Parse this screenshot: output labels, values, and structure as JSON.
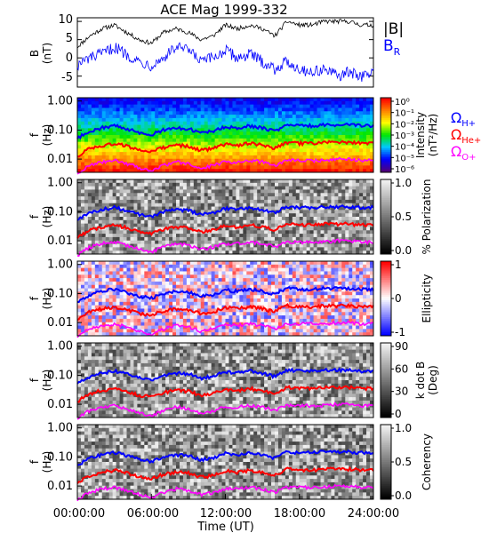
{
  "title": "ACE Mag 1999-332",
  "x_axis": {
    "label": "Time (UT)",
    "tick_labels": [
      "00:00:00",
      "06:00:00",
      "12:00:00",
      "18:00:00",
      "24:00:00"
    ],
    "range_hours": [
      0,
      24
    ]
  },
  "freq_ticks": [
    "1.00",
    "0.10",
    "0.01"
  ],
  "colors": {
    "black": "#000000",
    "blue": "#0000ff",
    "red": "#ff0000",
    "magenta": "#ff00ff"
  },
  "panel1": {
    "ylabel_main": "B",
    "ylabel_unit": "(nT)",
    "ticks": [
      "10",
      "5",
      "0",
      "-5"
    ],
    "legend_total": "|B|",
    "legend_radial": "B",
    "legend_radial_sub": "R"
  },
  "panels": [
    {
      "key": "intensity",
      "ylabel": "f",
      "yunit": "(Hz)",
      "cbar_title": "Intensity",
      "cbar_unit": "(nT²/Hz)",
      "cbar_type": "rainbow",
      "cbar_ticks": [
        "10⁰",
        "10⁻¹",
        "10⁻²",
        "10⁻³",
        "10⁻⁴",
        "10⁻⁵",
        "10⁻⁶"
      ]
    },
    {
      "key": "polarization",
      "ylabel": "f",
      "yunit": "(Hz)",
      "cbar_title": "% Polarization",
      "cbar_unit": "",
      "cbar_type": "gray",
      "cbar_ticks": [
        "1.0",
        "0.5",
        "0.0"
      ]
    },
    {
      "key": "ellipticity",
      "ylabel": "f",
      "yunit": "(Hz)",
      "cbar_title": "Ellipticity",
      "cbar_unit": "",
      "cbar_type": "bwr",
      "cbar_ticks": [
        "1",
        "0",
        "-1"
      ]
    },
    {
      "key": "kdotb",
      "ylabel": "f",
      "yunit": "(Hz)",
      "cbar_title": "k dot B",
      "cbar_unit": "(Deg)",
      "cbar_type": "gray",
      "cbar_ticks": [
        "90",
        "60",
        "30",
        "0"
      ]
    },
    {
      "key": "coherency",
      "ylabel": "f",
      "yunit": "(Hz)",
      "cbar_title": "Coherency",
      "cbar_unit": "",
      "cbar_type": "gray",
      "cbar_ticks": [
        "1.0",
        "0.5",
        "0.0"
      ]
    }
  ],
  "gyro_legend": [
    {
      "symbol": "Ω",
      "sub": "H+",
      "color": "#0000ff"
    },
    {
      "symbol": "Ω",
      "sub": "He+",
      "color": "#ff0000"
    },
    {
      "symbol": "Ω",
      "sub": "O+",
      "color": "#ff00ff"
    }
  ],
  "chart_data": {
    "type": "line",
    "title": "ACE Mag 1999-332",
    "xlabel": "Time (UT)",
    "ylabel": "B (nT)",
    "ylim": [
      -8,
      11
    ],
    "x": [
      0,
      1,
      2,
      3,
      4,
      5,
      6,
      7,
      8,
      9,
      10,
      11,
      12,
      13,
      14,
      15,
      16,
      17,
      18,
      19,
      20,
      21,
      22,
      23,
      24
    ],
    "series": [
      {
        "name": "|B|",
        "values": [
          3,
          6,
          8,
          9,
          7,
          5,
          4,
          7,
          8,
          7,
          5,
          6,
          9,
          8,
          9,
          8,
          6,
          10,
          9,
          9,
          10,
          10,
          10,
          9,
          9
        ]
      },
      {
        "name": "B R",
        "values": [
          -2,
          0,
          1,
          3,
          1,
          -1,
          -2,
          0,
          3,
          2,
          -1,
          0,
          2,
          0,
          1,
          -1,
          -3,
          -1,
          -3,
          -4,
          -3,
          -5,
          -4,
          -5,
          -4
        ]
      }
    ],
    "gyrofrequency_hz": {
      "x": [
        0,
        1,
        2,
        3,
        4,
        5,
        6,
        7,
        8,
        9,
        10,
        11,
        12,
        13,
        14,
        15,
        16,
        17,
        18,
        19,
        20,
        21,
        22,
        23,
        24
      ],
      "H+": [
        0.05,
        0.09,
        0.12,
        0.14,
        0.11,
        0.08,
        0.07,
        0.1,
        0.12,
        0.11,
        0.08,
        0.09,
        0.13,
        0.12,
        0.14,
        0.12,
        0.09,
        0.15,
        0.14,
        0.14,
        0.15,
        0.15,
        0.15,
        0.14,
        0.14
      ],
      "He+": [
        0.012,
        0.023,
        0.03,
        0.035,
        0.028,
        0.02,
        0.018,
        0.025,
        0.03,
        0.028,
        0.02,
        0.023,
        0.033,
        0.03,
        0.035,
        0.03,
        0.023,
        0.038,
        0.035,
        0.035,
        0.038,
        0.038,
        0.038,
        0.035,
        0.035
      ],
      "O+": [
        0.003,
        0.006,
        0.008,
        0.009,
        0.007,
        0.005,
        0.004,
        0.006,
        0.008,
        0.007,
        0.005,
        0.006,
        0.008,
        0.008,
        0.009,
        0.008,
        0.006,
        0.009,
        0.009,
        0.009,
        0.009,
        0.01,
        0.01,
        0.009,
        0.009
      ]
    }
  }
}
